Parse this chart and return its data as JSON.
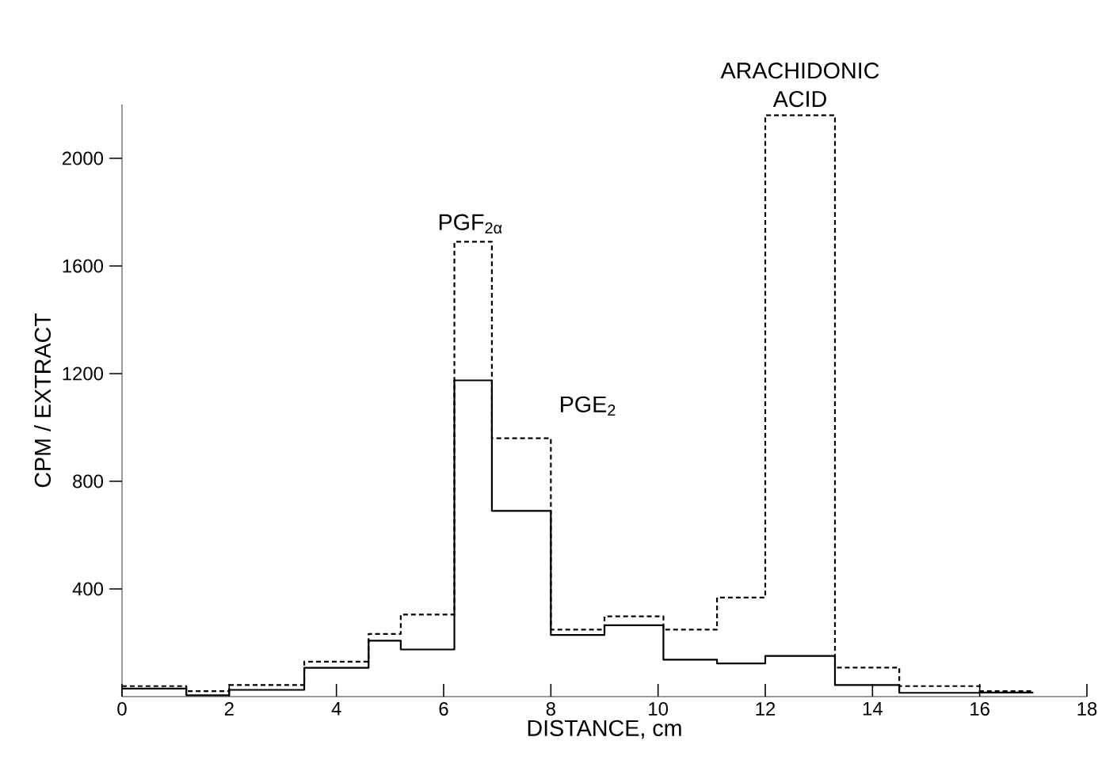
{
  "chart_data": {
    "type": "histogram",
    "xlabel": "DISTANCE, cm",
    "ylabel": "CPM / EXTRACT",
    "bins": [
      0,
      1.2,
      2,
      3.4,
      4.6,
      5.2,
      6.2,
      6.9,
      8,
      9,
      10.1,
      11.1,
      12,
      13.3,
      14.5,
      16,
      17
    ],
    "series": [
      {
        "color": "#000000",
        "line_style": "solid",
        "values": [
          30,
          5,
          25,
          107,
          208,
          175,
          1175,
          690,
          229,
          265,
          137,
          123,
          151,
          43,
          14,
          15
        ]
      },
      {
        "color": "#000000",
        "line_style": "dashed",
        "values": [
          39,
          20,
          43,
          130,
          233,
          305,
          1690,
          960,
          249,
          298,
          249,
          368,
          2160,
          108,
          39,
          20
        ]
      }
    ],
    "xlim": [
      0,
      18
    ],
    "xticks": [
      0,
      2,
      4,
      6,
      8,
      10,
      12,
      14,
      16,
      18
    ],
    "ylim": [
      0,
      2200
    ],
    "yticks": [
      400,
      800,
      1200,
      1600,
      2000
    ],
    "grid": false,
    "annotations": [
      {
        "text": "PGF$_{2α}$",
        "x": 6.5,
        "y": 1690
      },
      {
        "text": "PGE$_{2}$",
        "x": 7,
        "y": 1080
      },
      {
        "text": "ARACHIDONIC ACID",
        "x": 12.65,
        "y": 2160
      }
    ]
  }
}
